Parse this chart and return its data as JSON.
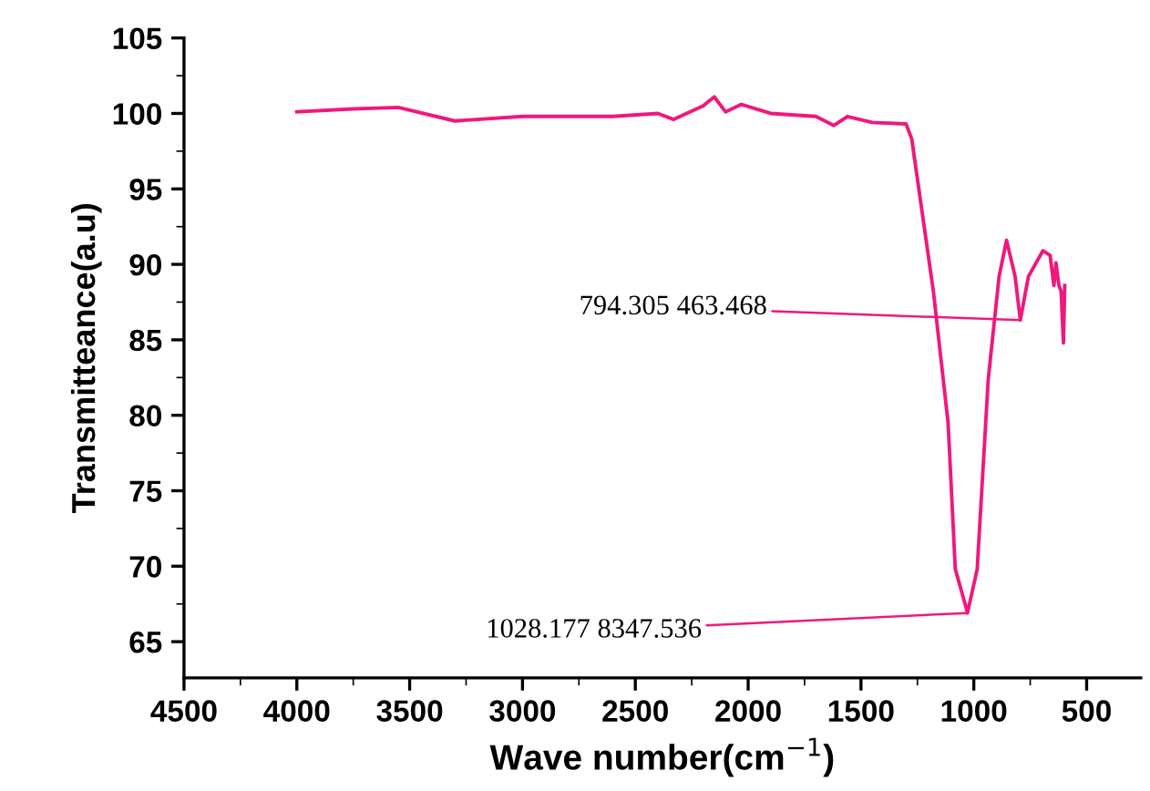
{
  "chart_data": {
    "type": "line",
    "xlabel": "Wave number(cm$^{−1}$)",
    "ylabel": "Transmitteance(a.u)",
    "x": [
      4000,
      3750,
      3550,
      3300,
      3000,
      2600,
      2400,
      2330,
      2200,
      2150,
      2100,
      2030,
      1900,
      1700,
      1620,
      1560,
      1450,
      1300,
      1275,
      1179,
      1114,
      1082,
      1033,
      1028,
      985,
      936,
      888,
      855,
      817,
      794,
      758,
      694,
      662,
      645,
      636,
      623,
      613,
      603,
      597
    ],
    "series": [
      {
        "color": "#f0187c",
        "values": [
          100.1,
          100.3,
          100.4,
          99.5,
          99.8,
          99.8,
          100,
          99.6,
          100.5,
          101.1,
          100.1,
          100.6,
          100,
          99.8,
          99.2,
          99.8,
          99.4,
          99.3,
          98.3,
          88.2,
          79.5,
          69.8,
          67.2,
          66.9,
          69.8,
          82.4,
          89.2,
          91.6,
          89.2,
          86.3,
          89.2,
          90.9,
          90.6,
          88.6,
          90.1,
          88.6,
          88.2,
          84.8,
          88.6
        ]
      }
    ],
    "xlim": [
      4500,
      260
    ],
    "xticks": [
      4500,
      4000,
      3500,
      3000,
      2500,
      2000,
      1500,
      1000,
      500
    ],
    "ylim": [
      62.6,
      105
    ],
    "yticks": [
      65,
      70,
      75,
      80,
      85,
      90,
      95,
      100,
      105
    ],
    "annotations": [
      {
        "text": "794.305 463.468",
        "x": 794,
        "y": 86.3
      },
      {
        "text": "1028.177 8347.536",
        "x": 1028,
        "y": 66.9
      }
    ],
    "grid": false,
    "legend": false,
    "marker": "none",
    "line_style": "solid"
  }
}
